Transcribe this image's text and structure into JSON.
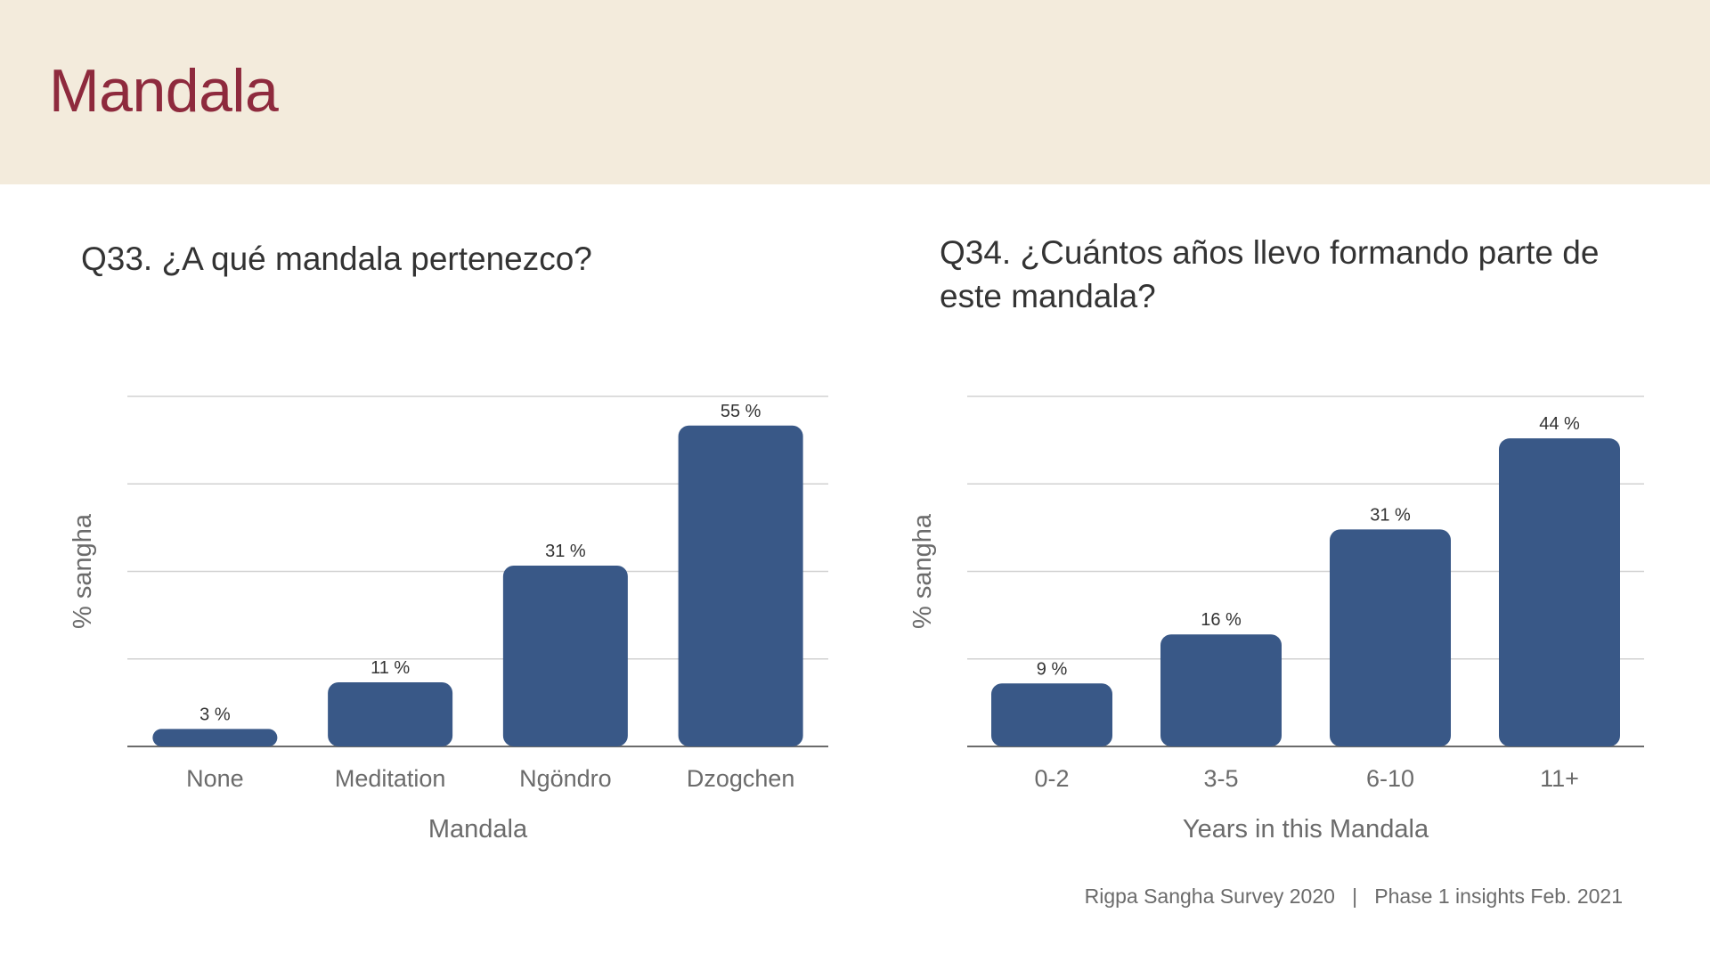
{
  "header": {
    "title": "Mandala"
  },
  "questions": {
    "q33": "Q33. ¿A qué mandala pertenezco?",
    "q34": "Q34.  ¿Cuántos años llevo formando parte de este mandala?"
  },
  "footer": {
    "survey": "Rigpa Sangha Survey 2020",
    "separator": "|",
    "phase": "Phase 1 insights Feb. 2021"
  },
  "colors": {
    "bar": "#395887",
    "title": "#8e2a3d",
    "header_bg": "#f3ebdc"
  },
  "chart_data": [
    {
      "type": "bar",
      "title": "Q33. ¿A qué mandala pertenezco?",
      "xlabel": "Mandala",
      "ylabel": "% sangha",
      "categories": [
        "None",
        "Meditation",
        "Ngöndro",
        "Dzogchen"
      ],
      "values": [
        3,
        11,
        31,
        55
      ],
      "data_labels": [
        "3 %",
        "11 %",
        "31 %",
        "55 %"
      ],
      "ylim": [
        0,
        60
      ],
      "grid": true
    },
    {
      "type": "bar",
      "title": "Q34.  ¿Cuántos años llevo formando parte de este mandala?",
      "xlabel": "Years in this Mandala",
      "ylabel": "% sangha",
      "categories": [
        "0-2",
        "3-5",
        "6-10",
        "11+"
      ],
      "values": [
        9,
        16,
        31,
        44
      ],
      "data_labels": [
        "9 %",
        "16 %",
        "31 %",
        "44 %"
      ],
      "ylim": [
        0,
        50
      ],
      "grid": true
    }
  ]
}
